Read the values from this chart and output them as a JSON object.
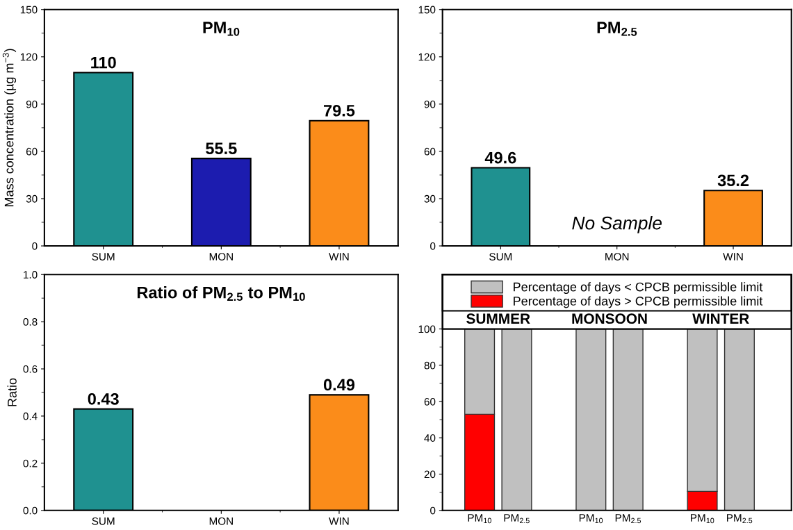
{
  "chart_data": [
    {
      "type": "bar",
      "title": "PM$_{10}$",
      "ylabel": "Mass concentration (µg m$^{−3}$)",
      "categories": [
        "SUM",
        "MON",
        "WIN"
      ],
      "values": [
        110,
        55.5,
        79.5
      ],
      "colors": [
        "#1f9190",
        "#1c1caf",
        "#fb8c1a"
      ],
      "ylim": [
        0,
        150
      ],
      "yticks": [
        0,
        30,
        60,
        90,
        120,
        150
      ],
      "data_labels": true,
      "grid": false,
      "legend": false
    },
    {
      "type": "bar",
      "title": "PM$_{2.5}$",
      "categories": [
        "SUM",
        "MON",
        "WIN"
      ],
      "values": [
        49.6,
        null,
        35.2
      ],
      "colors": [
        "#1f9190",
        "#1c1caf",
        "#fb8c1a"
      ],
      "ylim": [
        0,
        150
      ],
      "yticks": [
        0,
        30,
        60,
        90,
        120,
        150
      ],
      "data_labels": true,
      "grid": false,
      "legend": false,
      "annotations": [
        "No Sample"
      ]
    },
    {
      "type": "bar",
      "title": "Ratio of PM$_{2.5}$ to PM$_{10}$",
      "ylabel": "Ratio",
      "categories": [
        "SUM",
        "MON",
        "WIN"
      ],
      "values": [
        0.43,
        null,
        0.49
      ],
      "colors": [
        "#1f9190",
        "#1c1caf",
        "#fb8c1a"
      ],
      "ylim": [
        0,
        1.0
      ],
      "yticks": [
        {
          "value": 0,
          "label": "0.0"
        },
        0.2,
        0.4,
        0.6,
        0.8,
        {
          "value": 1,
          "label": "1.0"
        }
      ],
      "data_labels": true,
      "grid": false,
      "legend": false
    },
    {
      "type": "bar",
      "stacked": true,
      "categories": [
        "PM$_{10}$",
        "PM$_{2.5}$",
        null,
        "PM$_{10}$",
        "PM$_{2.5}$",
        null,
        "PM$_{10}$",
        "PM$_{2.5}$"
      ],
      "series": [
        {
          "name": "Percentage of days > CPCB permissible limit",
          "color": "#ff0000",
          "values": [
            53,
            0,
            null,
            0,
            0,
            null,
            10.5,
            0
          ]
        },
        {
          "name": "Percentage of days < CPCB permissible limit",
          "color": "#c0c0c0",
          "values": [
            47,
            100,
            null,
            100,
            100,
            null,
            89.5,
            100
          ]
        }
      ],
      "ylim": [
        0,
        130
      ],
      "yticks": [
        0,
        20,
        40,
        60,
        80,
        100
      ],
      "grid": false,
      "legend": "top",
      "annotations": [
        "SUMMER",
        "MONSOON",
        "WINTER"
      ]
    }
  ]
}
